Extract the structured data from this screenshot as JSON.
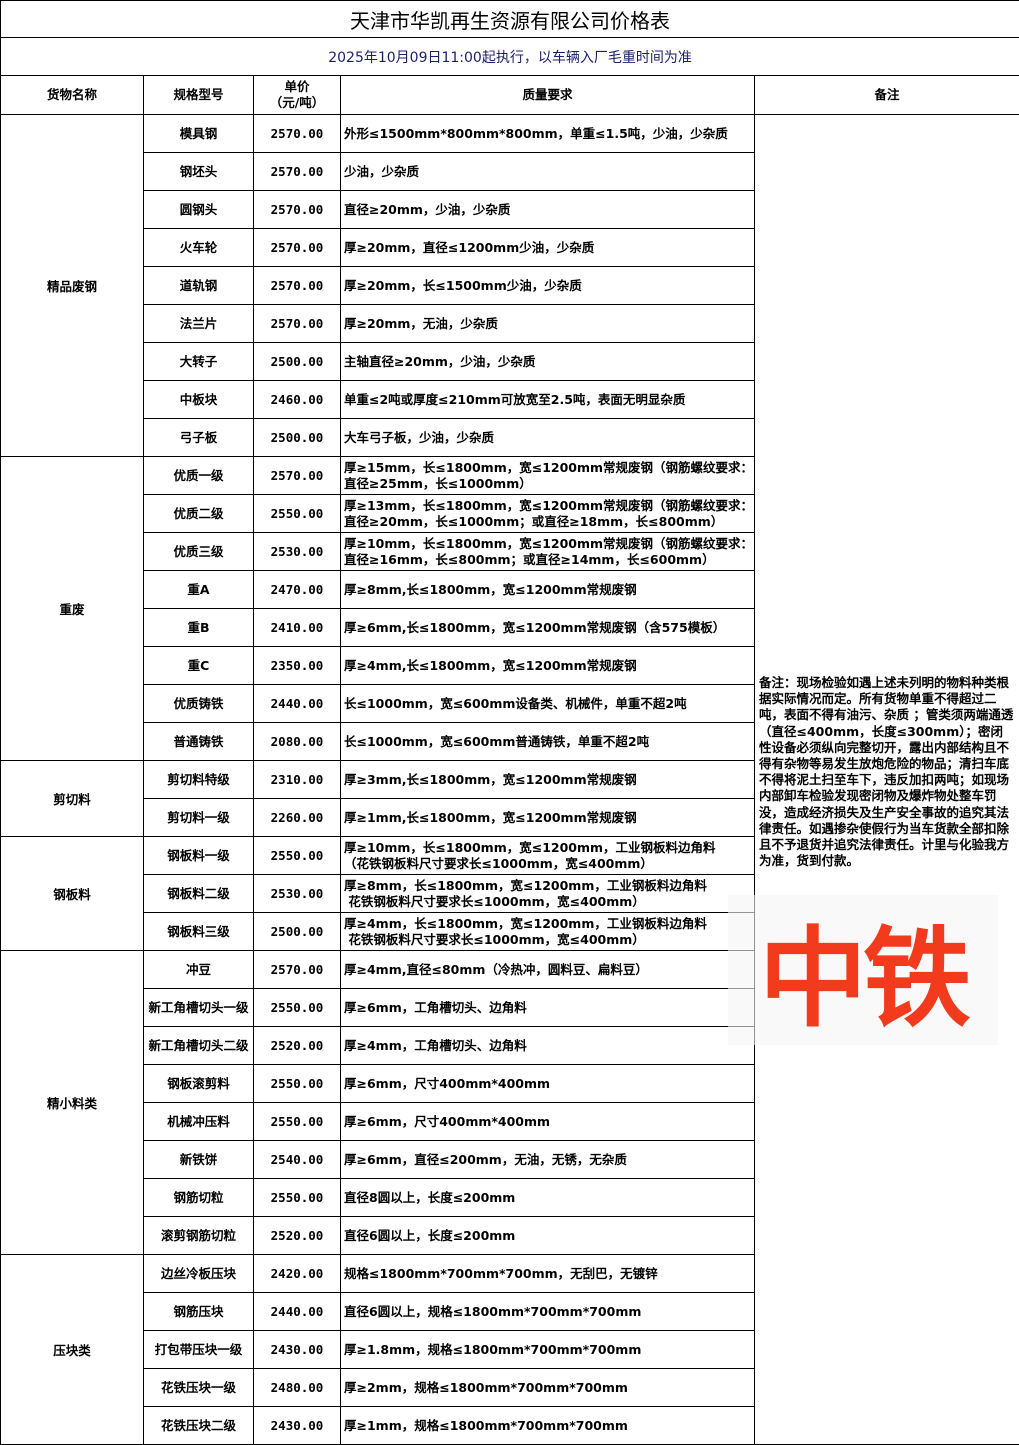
{
  "title": "天津市华凯再生资源有限公司价格表",
  "subtitle": "2025年10月09日11:00起执行，以车辆入厂毛重时间为准",
  "headers": {
    "name": "货物名称",
    "spec": "规格型号",
    "price": "单价\n（元/吨）",
    "quality": "质量要求",
    "remark": "备注"
  },
  "remark": "备注：现场检验如遇上述未列明的物料种类根据实际情况而定。所有货物单重不得超过二吨，表面不得有油污、杂质 ；管类须两端通透（直径≤400mm，长度≤300mm）；密闭性设备必须纵向完整切开，露出内部结构且不得有杂物等易发生放炮危险的物品；清扫车底不得将泥土扫至车下，违反加扣两吨；如现场内部卸车检验发现密闭物及爆炸物处整车罚没，造成经济损失及生产安全事故的追究其法律责任。如遇掺杂使假行为当车货款全部扣除且不予退货并追究法律责任。计里与化验我方为准，货到付款。",
  "watermark": "中铁",
  "groups": [
    {
      "name": "精品废钢",
      "items": [
        {
          "spec": "模具钢",
          "price": "2570.00",
          "quality": "外形≤1500mm*800mm*800mm，单重≤1.5吨，少油，少杂质"
        },
        {
          "spec": "钢坯头",
          "price": "2570.00",
          "quality": "少油，少杂质"
        },
        {
          "spec": "圆钢头",
          "price": "2570.00",
          "quality": "直径≥20mm，少油，少杂质"
        },
        {
          "spec": "火车轮",
          "price": "2570.00",
          "quality": "厚≥20mm，直径≤1200mm少油，少杂质"
        },
        {
          "spec": "道轨钢",
          "price": "2570.00",
          "quality": "厚≥20mm，长≤1500mm少油，少杂质"
        },
        {
          "spec": "法兰片",
          "price": "2570.00",
          "quality": "厚≥20mm，无油，少杂质"
        },
        {
          "spec": "大转子",
          "price": "2500.00",
          "quality": "主轴直径≥20mm，少油，少杂质"
        },
        {
          "spec": "中板块",
          "price": "2460.00",
          "quality": "单重≤2吨或厚度≤210mm可放宽至2.5吨，表面无明显杂质"
        },
        {
          "spec": "弓子板",
          "price": "2500.00",
          "quality": "大车弓子板，少油，少杂质"
        }
      ]
    },
    {
      "name": "重废",
      "items": [
        {
          "spec": "优质一级",
          "price": "2570.00",
          "quality": "厚≥15mm，长≤1800mm，宽≤1200mm常规废钢（钢筋螺纹要求：直径≥25mm，长≤1000mm）"
        },
        {
          "spec": "优质二级",
          "price": "2550.00",
          "quality": "厚≥13mm，长≤1800mm，宽≤1200mm常规废钢（钢筋螺纹要求：直径≥20mm，长≤1000mm；或直径≥18mm，长≤800mm）"
        },
        {
          "spec": "优质三级",
          "price": "2530.00",
          "quality": "厚≥10mm，长≤1800mm，宽≤1200mm常规废钢（钢筋螺纹要求：直径≥16mm，长≤800mm；或直径≥14mm，长≤600mm）"
        },
        {
          "spec": "重A",
          "price": "2470.00",
          "quality": "厚≥8mm,长≤1800mm，宽≤1200mm常规废钢"
        },
        {
          "spec": "重B",
          "price": "2410.00",
          "quality": "厚≥6mm,长≤1800mm，宽≤1200mm常规废钢（含575模板）"
        },
        {
          "spec": "重C",
          "price": "2350.00",
          "quality": "厚≥4mm,长≤1800mm，宽≤1200mm常规废钢"
        },
        {
          "spec": "优质铸铁",
          "price": "2440.00",
          "quality": "长≤1000mm，宽≤600mm设备类、机械件，单重不超2吨"
        },
        {
          "spec": "普通铸铁",
          "price": "2080.00",
          "quality": "长≤1000mm，宽≤600mm普通铸铁，单重不超2吨"
        }
      ]
    },
    {
      "name": "剪切料",
      "items": [
        {
          "spec": "剪切料特级",
          "price": "2310.00",
          "quality": "厚≥3mm,长≤1800mm，宽≤1200mm常规废钢"
        },
        {
          "spec": "剪切料一级",
          "price": "2260.00",
          "quality": "厚≥1mm,长≤1800mm，宽≤1200mm常规废钢"
        }
      ]
    },
    {
      "name": "钢板料",
      "items": [
        {
          "spec": "钢板料一级",
          "price": "2550.00",
          "quality": "厚≥10mm，长≤1800mm，宽≤1200mm，工业钢板料边角料\n（花铁钢板料尺寸要求长≤1000mm，宽≤400mm）"
        },
        {
          "spec": "钢板料二级",
          "price": "2530.00",
          "quality": "厚≥8mm，长≤1800mm，宽≤1200mm，工业钢板料边角料\n 花铁钢板料尺寸要求长≤1000mm，宽≤400mm）"
        },
        {
          "spec": "钢板料三级",
          "price": "2500.00",
          "quality": "厚≥4mm，长≤1800mm，宽≤1200mm，工业钢板料边角料\n 花铁钢板料尺寸要求长≤1000mm，宽≤400mm）"
        }
      ]
    },
    {
      "name": "精小料类",
      "items": [
        {
          "spec": "冲豆",
          "price": "2570.00",
          "quality": "厚≥4mm,直径≤80mm（冷热冲，圆料豆、扁料豆）"
        },
        {
          "spec": "新工角槽切头一级",
          "price": "2550.00",
          "quality": "厚≥6mm，工角槽切头、边角料"
        },
        {
          "spec": "新工角槽切头二级",
          "price": "2520.00",
          "quality": "厚≥4mm，工角槽切头、边角料"
        },
        {
          "spec": "钢板滚剪料",
          "price": "2550.00",
          "quality": "厚≥6mm，尺寸400mm*400mm"
        },
        {
          "spec": "机械冲压料",
          "price": "2550.00",
          "quality": "厚≥6mm，尺寸400mm*400mm"
        },
        {
          "spec": "新铁饼",
          "price": "2540.00",
          "quality": "厚≥6mm，直径≤200mm，无油，无锈，无杂质"
        },
        {
          "spec": "钢筋切粒",
          "price": "2550.00",
          "quality": "直径8圆以上，长度≤200mm"
        },
        {
          "spec": "滚剪钢筋切粒",
          "price": "2520.00",
          "quality": "直径6圆以上，长度≤200mm"
        }
      ]
    },
    {
      "name": "压块类",
      "items": [
        {
          "spec": "边丝冷板压块",
          "price": "2420.00",
          "quality": "规格≤1800mm*700mm*700mm，无刮巴，无镀锌"
        },
        {
          "spec": "钢筋压块",
          "price": "2440.00",
          "quality": "直径6圆以上，规格≤1800mm*700mm*700mm"
        },
        {
          "spec": "打包带压块一级",
          "price": "2430.00",
          "quality": "厚≥1.8mm，规格≤1800mm*700mm*700mm"
        },
        {
          "spec": "花铁压块一级",
          "price": "2480.00",
          "quality": "厚≥2mm，规格≤1800mm*700mm*700mm"
        },
        {
          "spec": "花铁压块二级",
          "price": "2430.00",
          "quality": "厚≥1mm，规格≤1800mm*700mm*700mm"
        }
      ]
    }
  ]
}
